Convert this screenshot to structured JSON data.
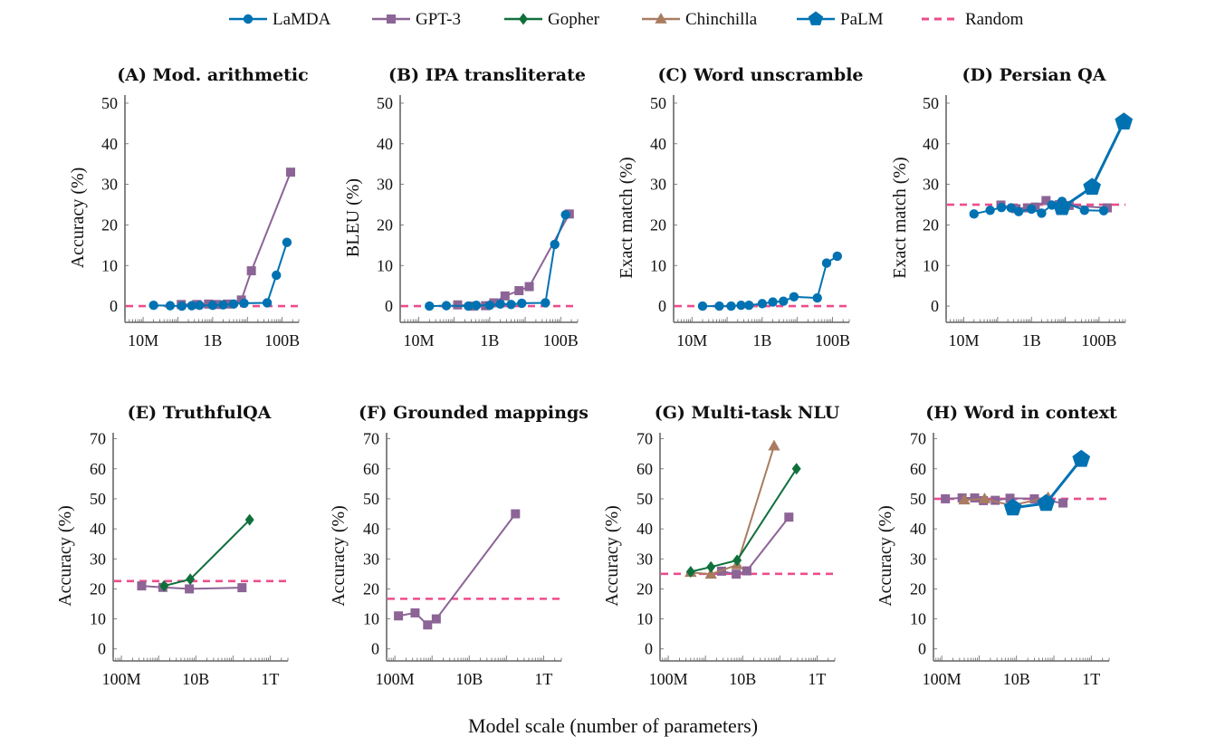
{
  "figure": {
    "xlabel": "Model scale (number of parameters)"
  },
  "legend": [
    {
      "key": "lamda",
      "label": "LaMDA",
      "color": "#0072B2",
      "marker": "circle"
    },
    {
      "key": "gpt3",
      "label": "GPT-3",
      "color": "#8C6496",
      "marker": "square"
    },
    {
      "key": "gopher",
      "label": "Gopher",
      "color": "#10703C",
      "marker": "diamond"
    },
    {
      "key": "chinchilla",
      "label": "Chinchilla",
      "color": "#A97C62",
      "marker": "triangle"
    },
    {
      "key": "palm",
      "label": "PaLM",
      "color": "#0072B2",
      "marker": "pentagon"
    },
    {
      "key": "random",
      "label": "Random",
      "color": "#EE4C8C",
      "marker": "dashed-line"
    }
  ],
  "chart_data": [
    {
      "type": "line",
      "title": "(A) Mod. arithmetic",
      "xlabel": "",
      "ylabel": "Accuracy (%)",
      "xscale": "log",
      "xlim": [
        3000000.0,
        300000000000.0
      ],
      "ylim": [
        -4,
        52
      ],
      "xticks": [
        {
          "v": 10000000.0,
          "label": "10M"
        },
        {
          "v": 1000000000.0,
          "label": "1B"
        },
        {
          "v": 100000000000.0,
          "label": "100B"
        }
      ],
      "yticks": [
        0,
        10,
        20,
        30,
        40,
        50
      ],
      "random": 0,
      "series": [
        {
          "key": "lamda",
          "x": [
            20000000.0,
            60000000.0,
            130000000.0,
            250000000.0,
            420000000.0,
            1000000000.0,
            2000000000.0,
            4000000000.0,
            8000000000.0,
            37000000000.0,
            68000000000.0,
            137000000000.0
          ],
          "y": [
            0.2,
            0.1,
            0.0,
            0.1,
            0.2,
            0.2,
            0.3,
            0.5,
            0.7,
            0.8,
            7.6,
            15.7
          ]
        },
        {
          "key": "gpt3",
          "x": [
            125000000.0,
            350000000.0,
            760000000.0,
            1300000000.0,
            2700000000.0,
            6700000000.0,
            13000000000.0,
            175000000000.0
          ],
          "y": [
            0.4,
            0.4,
            0.5,
            0.4,
            0.5,
            1.5,
            8.7,
            33.0
          ]
        }
      ]
    },
    {
      "type": "line",
      "title": "(B) IPA transliterate",
      "xlabel": "",
      "ylabel": "BLEU (%)",
      "xscale": "log",
      "xlim": [
        3000000.0,
        300000000000.0
      ],
      "ylim": [
        -4,
        52
      ],
      "xticks": [
        {
          "v": 10000000.0,
          "label": "10M"
        },
        {
          "v": 1000000000.0,
          "label": "1B"
        },
        {
          "v": 100000000000.0,
          "label": "100B"
        }
      ],
      "yticks": [
        0,
        10,
        20,
        30,
        40,
        50
      ],
      "random": 0,
      "series": [
        {
          "key": "lamda",
          "x": [
            20000000.0,
            60000000.0,
            250000000.0,
            420000000.0,
            1000000000.0,
            2000000000.0,
            4000000000.0,
            8000000000.0,
            37000000000.0,
            68000000000.0,
            137000000000.0
          ],
          "y": [
            0.0,
            0.1,
            0.0,
            0.2,
            0.2,
            0.5,
            0.4,
            0.7,
            0.8,
            15.2,
            22.5
          ]
        },
        {
          "key": "gpt3",
          "x": [
            125000000.0,
            350000000.0,
            760000000.0,
            1300000000.0,
            2700000000.0,
            6700000000.0,
            13000000000.0,
            175000000000.0
          ],
          "y": [
            0.3,
            0.0,
            0.1,
            0.8,
            2.5,
            3.8,
            4.8,
            22.7
          ]
        }
      ]
    },
    {
      "type": "line",
      "title": "(C) Word unscramble",
      "xlabel": "",
      "ylabel": "Exact match (%)",
      "xscale": "log",
      "xlim": [
        3000000.0,
        300000000000.0
      ],
      "ylim": [
        -4,
        52
      ],
      "xticks": [
        {
          "v": 10000000.0,
          "label": "10M"
        },
        {
          "v": 1000000000.0,
          "label": "1B"
        },
        {
          "v": 100000000000.0,
          "label": "100B"
        }
      ],
      "yticks": [
        0,
        10,
        20,
        30,
        40,
        50
      ],
      "random": 0,
      "series": [
        {
          "key": "lamda",
          "x": [
            20000000.0,
            60000000.0,
            130000000.0,
            250000000.0,
            420000000.0,
            1000000000.0,
            2000000000.0,
            4000000000.0,
            8000000000.0,
            37000000000.0,
            68000000000.0,
            137000000000.0
          ],
          "y": [
            0.0,
            0.0,
            0.0,
            0.2,
            0.2,
            0.6,
            1.0,
            1.2,
            2.3,
            2.0,
            10.6,
            12.3
          ]
        }
      ]
    },
    {
      "type": "line",
      "title": "(D) Persian QA",
      "xlabel": "",
      "ylabel": "Exact match (%)",
      "xscale": "log",
      "xlim": [
        3000000.0,
        600000000000.0
      ],
      "ylim": [
        -4,
        52
      ],
      "xticks": [
        {
          "v": 10000000.0,
          "label": "10M"
        },
        {
          "v": 1000000000.0,
          "label": "1B"
        },
        {
          "v": 100000000000.0,
          "label": "100B"
        }
      ],
      "yticks": [
        0,
        10,
        20,
        30,
        40,
        50
      ],
      "random": 25,
      "series": [
        {
          "key": "lamda",
          "x": [
            20000000.0,
            60000000.0,
            130000000.0,
            250000000.0,
            420000000.0,
            1000000000.0,
            2000000000.0,
            4000000000.0,
            8000000000.0,
            37000000000.0,
            137000000000.0
          ],
          "y": [
            22.7,
            23.6,
            24.3,
            24.2,
            23.3,
            23.9,
            22.9,
            24.9,
            25.8,
            23.6,
            23.5
          ]
        },
        {
          "key": "gpt3",
          "x": [
            125000000.0,
            350000000.0,
            760000000.0,
            1300000000.0,
            2700000000.0,
            6700000000.0,
            13000000000.0,
            175000000000.0
          ],
          "y": [
            24.9,
            24.0,
            24.2,
            24.4,
            26.0,
            25.0,
            24.8,
            24.2
          ]
        },
        {
          "key": "palm",
          "x": [
            8000000000.0,
            62000000000.0,
            540000000000.0
          ],
          "y": [
            24.3,
            29.3,
            45.4
          ]
        }
      ]
    },
    {
      "type": "line",
      "title": "(E) TruthfulQA",
      "xlabel": "",
      "ylabel": "Accuracy (%)",
      "xscale": "log",
      "xlim": [
        60000000.0,
        3000000000000.0
      ],
      "ylim": [
        -4,
        72
      ],
      "xticks": [
        {
          "v": 100000000.0,
          "label": "100M"
        },
        {
          "v": 10000000000.0,
          "label": "10B"
        },
        {
          "v": 1000000000000.0,
          "label": "1T"
        }
      ],
      "yticks": [
        0,
        10,
        20,
        30,
        40,
        50,
        60,
        70
      ],
      "random": 22.6,
      "series": [
        {
          "key": "gpt3",
          "x": [
            350000000.0,
            1300000000.0,
            6700000000.0,
            175000000000.0
          ],
          "y": [
            21.0,
            20.5,
            20.0,
            20.4
          ]
        },
        {
          "key": "gopher",
          "x": [
            1400000000.0,
            7100000000.0,
            280000000000.0
          ],
          "y": [
            21.0,
            23.2,
            43.0
          ]
        }
      ]
    },
    {
      "type": "line",
      "title": "(F) Grounded mappings",
      "xlabel": "",
      "ylabel": "Accuracy (%)",
      "xscale": "log",
      "xlim": [
        60000000.0,
        3000000000000.0
      ],
      "ylim": [
        -4,
        72
      ],
      "xticks": [
        {
          "v": 100000000.0,
          "label": "100M"
        },
        {
          "v": 10000000000.0,
          "label": "10B"
        },
        {
          "v": 1000000000000.0,
          "label": "1T"
        }
      ],
      "yticks": [
        0,
        10,
        20,
        30,
        40,
        50,
        60,
        70
      ],
      "random": 16.7,
      "series": [
        {
          "key": "gpt3",
          "x": [
            125000000.0,
            350000000.0,
            760000000.0,
            1300000000.0,
            175000000000.0
          ],
          "y": [
            11.0,
            12.0,
            8.0,
            10.0,
            45.0
          ]
        }
      ]
    },
    {
      "type": "line",
      "title": "(G) Multi-task NLU",
      "xlabel": "",
      "ylabel": "Accuracy (%)",
      "xscale": "log",
      "xlim": [
        60000000.0,
        3000000000000.0
      ],
      "ylim": [
        -4,
        72
      ],
      "xticks": [
        {
          "v": 100000000.0,
          "label": "100M"
        },
        {
          "v": 10000000000.0,
          "label": "10B"
        },
        {
          "v": 1000000000000.0,
          "label": "1T"
        }
      ],
      "yticks": [
        0,
        10,
        20,
        30,
        40,
        50,
        60,
        70
      ],
      "random": 25,
      "series": [
        {
          "key": "gpt3",
          "x": [
            2700000000.0,
            6700000000.0,
            13000000000.0,
            175000000000.0
          ],
          "y": [
            25.9,
            24.9,
            26.0,
            43.9
          ]
        },
        {
          "key": "chinchilla",
          "x": [
            400000000.0,
            1400000000.0,
            7100000000.0,
            70000000000.0
          ],
          "y": [
            25.5,
            24.9,
            28.0,
            67.6
          ]
        },
        {
          "key": "gopher",
          "x": [
            400000000.0,
            1400000000.0,
            7100000000.0,
            280000000000.0
          ],
          "y": [
            25.7,
            27.3,
            29.5,
            60.0
          ]
        }
      ]
    },
    {
      "type": "line",
      "title": "(H) Word in context",
      "xlabel": "",
      "ylabel": "Accuracy (%)",
      "xscale": "log",
      "xlim": [
        60000000.0,
        3000000000000.0
      ],
      "ylim": [
        -4,
        72
      ],
      "xticks": [
        {
          "v": 100000000.0,
          "label": "100M"
        },
        {
          "v": 10000000000.0,
          "label": "10B"
        },
        {
          "v": 1000000000000.0,
          "label": "1T"
        }
      ],
      "yticks": [
        0,
        10,
        20,
        30,
        40,
        50,
        60,
        70
      ],
      "random": 50,
      "series": [
        {
          "key": "gpt3",
          "x": [
            125000000.0,
            350000000.0,
            760000000.0,
            1300000000.0,
            2700000000.0,
            6700000000.0,
            30000000000.0,
            175000000000.0
          ],
          "y": [
            50.0,
            50.3,
            50.3,
            49.4,
            49.5,
            50.2,
            50.0,
            48.6
          ]
        },
        {
          "key": "chinchilla",
          "x": [
            400000000.0,
            1400000000.0,
            7100000000.0,
            70000000000.0
          ],
          "y": [
            49.6,
            50.0,
            47.8,
            50.4
          ]
        },
        {
          "key": "palm",
          "x": [
            8000000000.0,
            62000000000.0,
            540000000000.0
          ],
          "y": [
            47.0,
            48.5,
            63.2
          ]
        }
      ]
    }
  ]
}
